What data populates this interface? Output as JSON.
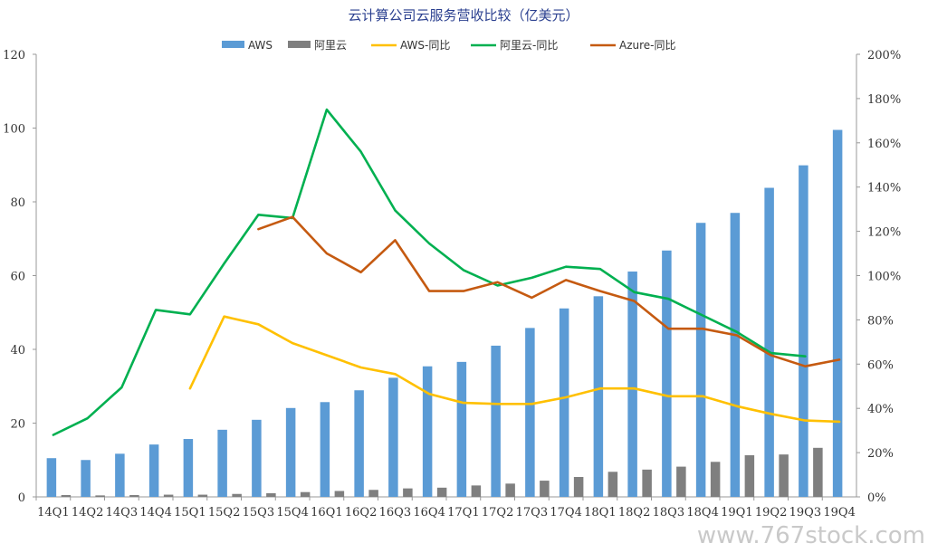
{
  "chart_data": {
    "type": "bar",
    "title": "云计算公司云服务营收比较（亿美元）",
    "categories": [
      "14Q1",
      "14Q2",
      "14Q3",
      "14Q4",
      "15Q1",
      "15Q2",
      "15Q3",
      "15Q4",
      "16Q1",
      "16Q2",
      "16Q3",
      "16Q4",
      "17Q1",
      "17Q2",
      "17Q3",
      "17Q4",
      "18Q1",
      "18Q2",
      "18Q3",
      "18Q4",
      "19Q1",
      "19Q2",
      "19Q3",
      "19Q4"
    ],
    "left_axis": {
      "ylim": [
        0,
        120
      ],
      "ticks": [
        "0",
        "20",
        "40",
        "60",
        "80",
        "100",
        "120"
      ]
    },
    "right_axis": {
      "ylim": [
        0,
        2.0
      ],
      "ticks": [
        "0%",
        "20%",
        "40%",
        "60%",
        "80%",
        "100%",
        "120%",
        "140%",
        "160%",
        "180%",
        "200%"
      ]
    },
    "bar_series": [
      {
        "name": "AWS",
        "color": "#5b9bd5",
        "values": [
          10.5,
          10.0,
          11.7,
          14.2,
          15.7,
          18.2,
          20.9,
          24.1,
          25.7,
          28.9,
          32.3,
          35.4,
          36.6,
          41.0,
          45.8,
          51.1,
          54.4,
          61.1,
          66.8,
          74.3,
          77.0,
          83.8,
          89.9,
          99.5
        ]
      },
      {
        "name": "阿里云",
        "color": "#7f7f7f",
        "values": [
          0.5,
          0.4,
          0.5,
          0.6,
          0.6,
          0.8,
          1.0,
          1.3,
          1.6,
          1.9,
          2.3,
          2.5,
          3.1,
          3.6,
          4.4,
          5.4,
          6.8,
          7.4,
          8.2,
          9.5,
          11.3,
          11.5,
          13.3,
          null
        ]
      }
    ],
    "line_series": [
      {
        "name": "AWS-同比",
        "color": "#ffc000",
        "values": [
          null,
          null,
          null,
          null,
          0.49,
          0.815,
          0.78,
          0.695,
          0.64,
          0.585,
          0.555,
          0.465,
          0.425,
          0.42,
          0.42,
          0.45,
          0.49,
          0.49,
          0.455,
          0.455,
          0.41,
          0.375,
          0.345,
          0.34
        ]
      },
      {
        "name": "阿里云-同比",
        "color": "#00b050",
        "values": [
          0.28,
          0.355,
          0.495,
          0.845,
          0.825,
          1.055,
          1.275,
          1.26,
          1.75,
          1.56,
          1.295,
          1.145,
          1.025,
          0.955,
          0.99,
          1.04,
          1.03,
          0.925,
          0.895,
          0.82,
          0.745,
          0.65,
          0.635,
          null
        ]
      },
      {
        "name": "Azure-同比",
        "color": "#c55a11",
        "values": [
          null,
          null,
          null,
          null,
          null,
          null,
          1.21,
          1.265,
          1.1,
          1.015,
          1.16,
          0.93,
          0.93,
          0.97,
          0.9,
          0.98,
          0.93,
          0.885,
          0.76,
          0.76,
          0.73,
          0.64,
          0.59,
          0.62
        ]
      }
    ],
    "legend": {
      "position": "top"
    },
    "grid": false
  },
  "watermark": {
    "text": "www.767stock.com"
  }
}
